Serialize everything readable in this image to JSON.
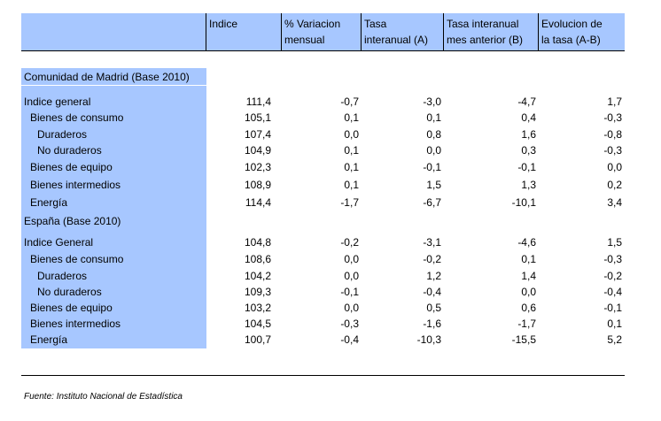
{
  "headers": [
    "",
    "Indice",
    "% Variacion\nmensual",
    "Tasa\ninteranual (A)",
    "Tasa interanual\nmes anterior (B)",
    "Evolucion de\nla tasa (A-B)"
  ],
  "sections": [
    {
      "title": "Comunidad de Madrid (Base 2010)",
      "rows": [
        {
          "label": "Indice general",
          "values": [
            "111,4",
            "-0,7",
            "-3,0",
            "-4,7",
            "1,7"
          ]
        },
        {
          "label": "Bienes de consumo",
          "values": [
            "105,1",
            "0,1",
            "0,1",
            "0,4",
            "-0,3"
          ]
        },
        {
          "label": "Duraderos",
          "values": [
            "107,4",
            "0,0",
            "0,8",
            "1,6",
            "-0,8"
          ]
        },
        {
          "label": "No duraderos",
          "values": [
            "104,9",
            "0,1",
            "0,0",
            "0,3",
            "-0,3"
          ]
        },
        {
          "label": "Bienes de equipo",
          "values": [
            "102,3",
            "0,1",
            "-0,1",
            "-0,1",
            "0,0"
          ]
        },
        {
          "label": "Bienes intermedios",
          "values": [
            "108,9",
            "0,1",
            "1,5",
            "1,3",
            "0,2"
          ]
        },
        {
          "label": "Energía",
          "values": [
            "114,4",
            "-1,7",
            "-6,7",
            "-10,1",
            "3,4"
          ]
        }
      ]
    },
    {
      "title": "España (Base 2010)",
      "rows": [
        {
          "label": "Indice General",
          "values": [
            "104,8",
            "-0,2",
            "-3,1",
            "-4,6",
            "1,5"
          ]
        },
        {
          "label": "Bienes de consumo",
          "values": [
            "108,6",
            "0,0",
            "-0,2",
            "0,1",
            "-0,3"
          ]
        },
        {
          "label": "Duraderos",
          "values": [
            "104,2",
            "0,0",
            "1,2",
            "1,4",
            "-0,2"
          ]
        },
        {
          "label": "No duraderos",
          "values": [
            "109,3",
            "-0,1",
            "-0,4",
            "0,0",
            "-0,4"
          ]
        },
        {
          "label": "Bienes de equipo",
          "values": [
            "103,2",
            "0,0",
            "0,5",
            "0,6",
            "-0,1"
          ]
        },
        {
          "label": "Bienes intermedios",
          "values": [
            "104,5",
            "-0,3",
            "-1,6",
            "-1,7",
            "0,1"
          ]
        },
        {
          "label": "Energía",
          "values": [
            "100,7",
            "-0,4",
            "-10,3",
            "-15,5",
            "5,2"
          ]
        }
      ]
    }
  ],
  "footer": "Fuente: Instituto Nacional de Estadística",
  "colors": {
    "header_bg": "#a7c7ff",
    "label_bg": "#a7c7ff"
  }
}
